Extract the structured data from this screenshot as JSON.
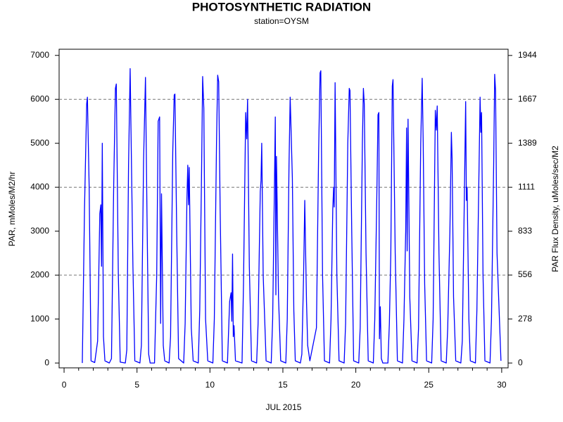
{
  "chart_data": {
    "type": "line",
    "title": "PHOTOSYNTHETIC RADIATION",
    "subtitle": "station=OYSM",
    "xlabel": "JUL 2015",
    "ylabel": "PAR, mMoles/M2/hr",
    "y2label": "PAR Flux Density, uMoles/sec/M2",
    "xlim": [
      -0.34,
      30.44
    ],
    "xticks": [
      0,
      5,
      10,
      15,
      20,
      25,
      30
    ],
    "xminorticks": [
      1,
      2,
      3,
      4,
      6,
      7,
      8,
      9,
      11,
      12,
      13,
      14,
      16,
      17,
      18,
      19,
      21,
      22,
      23,
      24,
      26,
      27,
      28,
      29
    ],
    "ylim": [
      -110,
      7140
    ],
    "yticks": [
      0,
      1000,
      2000,
      3000,
      4000,
      5000,
      6000,
      7000
    ],
    "ygrid": [
      2000,
      4000,
      6000
    ],
    "y2lim": [
      -30.6,
      1983.3
    ],
    "y2ticks": [
      0,
      278,
      556,
      833,
      1111,
      1389,
      1667,
      1944
    ],
    "x": [
      1.25,
      1.4,
      1.55,
      1.6,
      1.72,
      1.85,
      2.1,
      2.3,
      2.45,
      2.52,
      2.57,
      2.62,
      2.7,
      2.8,
      3.1,
      3.25,
      3.4,
      3.52,
      3.58,
      3.72,
      3.85,
      4.2,
      4.3,
      4.42,
      4.53,
      4.6,
      4.72,
      4.85,
      5.2,
      5.3,
      5.45,
      5.58,
      5.68,
      5.8,
      5.9,
      6.2,
      6.35,
      6.45,
      6.55,
      6.62,
      6.68,
      6.8,
      6.9,
      7.2,
      7.3,
      7.45,
      7.55,
      7.6,
      7.72,
      7.85,
      8.2,
      8.3,
      8.42,
      8.48,
      8.53,
      8.58,
      8.72,
      8.85,
      9.2,
      9.3,
      9.42,
      9.5,
      9.58,
      9.7,
      9.85,
      10.2,
      10.3,
      10.45,
      10.53,
      10.6,
      10.7,
      10.85,
      11.2,
      11.35,
      11.45,
      11.5,
      11.55,
      11.6,
      11.65,
      11.75,
      12.2,
      12.3,
      12.45,
      12.52,
      12.58,
      12.7,
      12.85,
      13.2,
      13.3,
      13.45,
      13.5,
      13.55,
      13.65,
      13.85,
      14.2,
      14.3,
      14.42,
      14.48,
      14.52,
      14.56,
      14.6,
      14.7,
      14.85,
      15.2,
      15.3,
      15.42,
      15.5,
      15.55,
      15.65,
      15.75,
      15.85,
      16.2,
      16.3,
      16.42,
      16.5,
      16.55,
      16.62,
      16.7,
      16.85,
      17.3,
      17.45,
      17.55,
      17.6,
      17.72,
      17.85,
      18.2,
      18.3,
      18.42,
      18.48,
      18.52,
      18.58,
      18.7,
      18.85,
      19.2,
      19.3,
      19.45,
      19.55,
      19.6,
      19.72,
      19.85,
      20.2,
      20.3,
      20.45,
      20.52,
      20.58,
      20.7,
      20.85,
      21.2,
      21.3,
      21.45,
      21.52,
      21.58,
      21.62,
      21.68,
      21.75,
      21.85,
      22.2,
      22.3,
      22.4,
      22.5,
      22.55,
      22.7,
      22.85,
      23.2,
      23.3,
      23.42,
      23.48,
      23.52,
      23.58,
      23.7,
      23.85,
      24.2,
      24.3,
      24.45,
      24.55,
      24.62,
      24.72,
      24.85,
      25.2,
      25.3,
      25.45,
      25.52,
      25.58,
      25.7,
      25.85,
      26.2,
      26.3,
      26.45,
      26.55,
      26.6,
      26.7,
      26.85,
      27.2,
      27.3,
      27.45,
      27.53,
      27.58,
      27.63,
      27.75,
      27.85,
      28.2,
      28.3,
      28.45,
      28.52,
      28.57,
      28.62,
      28.72,
      28.85,
      29.2,
      29.3,
      29.45,
      29.52,
      29.58,
      29.68,
      29.95
    ],
    "series": [
      {
        "color": "#0000ff",
        "values": [
          0,
          3500,
          5900,
          6050,
          4000,
          50,
          10,
          500,
          3400,
          3600,
          2200,
          5000,
          600,
          50,
          0,
          100,
          4000,
          6250,
          6350,
          2000,
          20,
          0,
          300,
          4500,
          6700,
          5000,
          2200,
          50,
          0,
          400,
          4600,
          6500,
          3500,
          200,
          0,
          0,
          2000,
          5500,
          5600,
          900,
          3850,
          400,
          50,
          0,
          600,
          4800,
          6100,
          6120,
          3000,
          100,
          0,
          900,
          3700,
          4500,
          3600,
          4450,
          800,
          50,
          0,
          1200,
          4200,
          6520,
          5800,
          1000,
          50,
          0,
          1000,
          5000,
          6550,
          6400,
          3500,
          50,
          0,
          1400,
          1600,
          950,
          2480,
          600,
          850,
          50,
          0,
          1800,
          5700,
          5100,
          6000,
          2200,
          50,
          0,
          900,
          3900,
          4150,
          5000,
          2000,
          50,
          0,
          1000,
          4000,
          5600,
          1550,
          4700,
          3800,
          1500,
          50,
          0,
          1000,
          4500,
          6050,
          5450,
          4200,
          1200,
          50,
          0,
          200,
          2000,
          3700,
          2700,
          1400,
          400,
          50,
          800,
          4800,
          6600,
          6650,
          2000,
          50,
          0,
          1000,
          3500,
          4000,
          3550,
          6380,
          2000,
          50,
          0,
          900,
          5000,
          6250,
          6200,
          3000,
          50,
          0,
          800,
          5000,
          6250,
          5900,
          2500,
          50,
          0,
          1000,
          4000,
          5650,
          5700,
          550,
          1280,
          100,
          0,
          0,
          900,
          2500,
          6300,
          6450,
          2500,
          50,
          0,
          1000,
          3000,
          5350,
          2550,
          5550,
          1500,
          50,
          0,
          800,
          5000,
          6480,
          5000,
          1800,
          50,
          0,
          1000,
          5750,
          5300,
          5850,
          2500,
          50,
          0,
          800,
          3000,
          5250,
          4650,
          1500,
          50,
          0,
          500,
          4000,
          5950,
          3700,
          4000,
          1000,
          50,
          0,
          1200,
          4500,
          6050,
          5250,
          5700,
          2000,
          50,
          0,
          1000,
          4500,
          6570,
          6200,
          2500,
          50
        ]
      }
    ]
  }
}
